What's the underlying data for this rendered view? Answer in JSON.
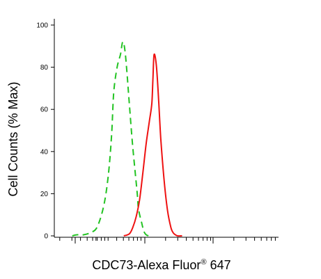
{
  "chart_data": {
    "type": "line",
    "title": "",
    "xlabel": "CDC73-Alexa Fluor",
    "xlabel_suffix": "647",
    "xlabel_mark": "®",
    "ylabel": "Cell Counts (% Max)",
    "ylim": [
      0,
      100
    ],
    "xlim": [
      0,
      1
    ],
    "yticks": [
      0,
      20,
      40,
      60,
      80,
      100
    ],
    "ytick_labels": [
      "0",
      "20",
      "40",
      "60",
      "80",
      "100"
    ],
    "grid": false,
    "legend": "none",
    "series": [
      {
        "color": "#22c322",
        "style": "dashed",
        "x": [
          0.08,
          0.1,
          0.13,
          0.16,
          0.19,
          0.22,
          0.24,
          0.255,
          0.265,
          0.28,
          0.295,
          0.305,
          0.315,
          0.325,
          0.335,
          0.35,
          0.37,
          0.375,
          0.39,
          0.4,
          0.41,
          0.42
        ],
        "y": [
          0,
          0.5,
          0.5,
          1.5,
          4,
          14,
          28,
          47,
          68,
          80,
          86,
          92,
          88,
          76,
          62,
          42,
          20,
          13,
          6,
          2,
          0.5,
          0
        ]
      },
      {
        "color": "#ee1111",
        "style": "solid",
        "x": [
          0.31,
          0.335,
          0.35,
          0.365,
          0.38,
          0.395,
          0.41,
          0.425,
          0.435,
          0.44,
          0.445,
          0.455,
          0.465,
          0.475,
          0.49,
          0.505,
          0.52,
          0.53,
          0.54,
          0.55,
          0.57
        ],
        "y": [
          0,
          1,
          4,
          9,
          17,
          30,
          44,
          55,
          63,
          75,
          86,
          81,
          65,
          46,
          26,
          12,
          4,
          1.5,
          0.5,
          0,
          0
        ]
      }
    ]
  }
}
